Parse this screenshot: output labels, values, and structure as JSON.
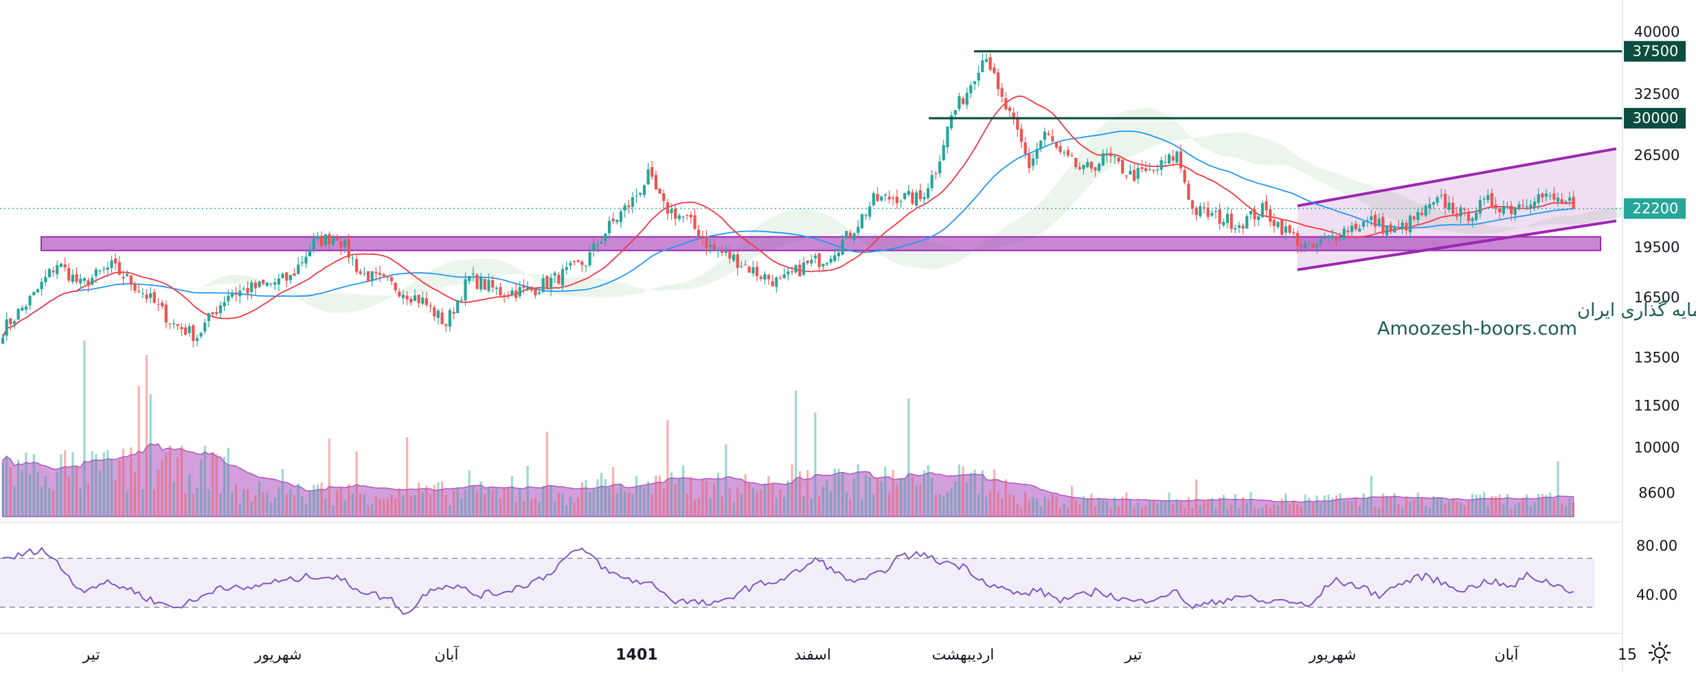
{
  "chart_data": {
    "type": "candlestick",
    "y_axis": {
      "scale": "log",
      "ticks": [
        "40000",
        "32500",
        "26500",
        "19500",
        "16500",
        "13500",
        "11500",
        "10000",
        "8600"
      ],
      "range": [
        7800,
        44500
      ]
    },
    "x_axis": {
      "ticks": [
        {
          "label": "تیر",
          "bold": false
        },
        {
          "label": "شهریور",
          "bold": false
        },
        {
          "label": "آبان",
          "bold": false
        },
        {
          "label": "1401",
          "bold": true
        },
        {
          "label": "اسفند",
          "bold": false
        },
        {
          "label": "اردیبهشت",
          "bold": false
        },
        {
          "label": "تیر",
          "bold": false
        },
        {
          "label": "شهریور",
          "bold": false
        },
        {
          "label": "آبان",
          "bold": false
        },
        {
          "label": "15",
          "bold": false
        }
      ]
    },
    "price_keyframes": [
      [
        0,
        14800
      ],
      [
        8,
        16600
      ],
      [
        14,
        18500
      ],
      [
        20,
        17200
      ],
      [
        28,
        18300
      ],
      [
        36,
        16800
      ],
      [
        44,
        15100
      ],
      [
        50,
        14500
      ],
      [
        58,
        16700
      ],
      [
        66,
        17100
      ],
      [
        74,
        17600
      ],
      [
        80,
        19800
      ],
      [
        86,
        20300
      ],
      [
        92,
        17900
      ],
      [
        100,
        17200
      ],
      [
        108,
        16300
      ],
      [
        114,
        15100
      ],
      [
        120,
        17600
      ],
      [
        128,
        16800
      ],
      [
        136,
        16900
      ],
      [
        144,
        17800
      ],
      [
        150,
        18600
      ],
      [
        156,
        20900
      ],
      [
        162,
        22800
      ],
      [
        166,
        24700
      ],
      [
        170,
        22300
      ],
      [
        176,
        21400
      ],
      [
        182,
        19500
      ],
      [
        188,
        18800
      ],
      [
        194,
        17900
      ],
      [
        200,
        17300
      ],
      [
        206,
        18300
      ],
      [
        212,
        18900
      ],
      [
        218,
        20400
      ],
      [
        224,
        22800
      ],
      [
        230,
        23100
      ],
      [
        236,
        22900
      ],
      [
        240,
        25300
      ],
      [
        244,
        30200
      ],
      [
        248,
        32800
      ],
      [
        251,
        35800
      ],
      [
        253,
        37300
      ],
      [
        256,
        32600
      ],
      [
        260,
        29400
      ],
      [
        264,
        25600
      ],
      [
        268,
        28600
      ],
      [
        272,
        26500
      ],
      [
        278,
        25100
      ],
      [
        284,
        26400
      ],
      [
        290,
        24800
      ],
      [
        296,
        25100
      ],
      [
        302,
        26600
      ],
      [
        306,
        22100
      ],
      [
        312,
        21600
      ],
      [
        318,
        21100
      ],
      [
        324,
        22100
      ],
      [
        330,
        20600
      ],
      [
        336,
        19300
      ],
      [
        340,
        19900
      ],
      [
        346,
        20800
      ],
      [
        352,
        21300
      ],
      [
        358,
        20500
      ],
      [
        364,
        21600
      ],
      [
        370,
        22800
      ],
      [
        376,
        21600
      ],
      [
        382,
        22700
      ],
      [
        388,
        22200
      ],
      [
        394,
        23200
      ],
      [
        400,
        22800
      ],
      [
        404,
        22400
      ]
    ],
    "series": [
      {
        "name": "",
        "kind": "candles",
        "color_up": "#26a69a",
        "color_down": "#ef5350"
      },
      {
        "name": "",
        "kind": "moving_average_fast",
        "color": "#f23645"
      },
      {
        "name": "",
        "kind": "moving_average_slow",
        "color": "#2196f3"
      },
      {
        "name": "",
        "kind": "cloud",
        "color": "#e4f2e6"
      },
      {
        "name": "",
        "kind": "volume",
        "color": "#9c27b0"
      },
      {
        "name": "",
        "kind": "rsi",
        "color": "#7e57c2",
        "upper": 70,
        "lower": 30
      }
    ],
    "rsi": {
      "ticks": [
        "80.00",
        "40.00"
      ],
      "keyframes": [
        [
          0,
          68
        ],
        [
          4,
          72
        ],
        [
          10,
          78
        ],
        [
          14,
          66
        ],
        [
          20,
          44
        ],
        [
          26,
          50
        ],
        [
          32,
          46
        ],
        [
          38,
          36
        ],
        [
          44,
          30
        ],
        [
          50,
          36
        ],
        [
          56,
          48
        ],
        [
          62,
          44
        ],
        [
          68,
          50
        ],
        [
          74,
          52
        ],
        [
          80,
          56
        ],
        [
          86,
          54
        ],
        [
          92,
          44
        ],
        [
          100,
          36
        ],
        [
          104,
          24
        ],
        [
          110,
          46
        ],
        [
          116,
          48
        ],
        [
          122,
          40
        ],
        [
          128,
          42
        ],
        [
          134,
          48
        ],
        [
          140,
          56
        ],
        [
          146,
          74
        ],
        [
          150,
          76
        ],
        [
          156,
          58
        ],
        [
          162,
          52
        ],
        [
          168,
          48
        ],
        [
          172,
          36
        ],
        [
          178,
          34
        ],
        [
          184,
          32
        ],
        [
          190,
          44
        ],
        [
          196,
          50
        ],
        [
          200,
          52
        ],
        [
          206,
          62
        ],
        [
          210,
          70
        ],
        [
          214,
          58
        ],
        [
          220,
          50
        ],
        [
          226,
          58
        ],
        [
          230,
          70
        ],
        [
          236,
          74
        ],
        [
          240,
          68
        ],
        [
          244,
          66
        ],
        [
          248,
          62
        ],
        [
          252,
          52
        ],
        [
          258,
          44
        ],
        [
          262,
          40
        ],
        [
          266,
          44
        ],
        [
          272,
          36
        ],
        [
          276,
          38
        ],
        [
          282,
          44
        ],
        [
          286,
          38
        ],
        [
          292,
          34
        ],
        [
          298,
          40
        ],
        [
          302,
          42
        ],
        [
          306,
          30
        ],
        [
          312,
          34
        ],
        [
          318,
          40
        ],
        [
          324,
          34
        ],
        [
          330,
          36
        ],
        [
          336,
          30
        ],
        [
          342,
          52
        ],
        [
          348,
          48
        ],
        [
          354,
          40
        ],
        [
          360,
          50
        ],
        [
          366,
          56
        ],
        [
          370,
          50
        ],
        [
          376,
          44
        ],
        [
          382,
          52
        ],
        [
          388,
          46
        ],
        [
          392,
          56
        ],
        [
          398,
          50
        ],
        [
          404,
          43
        ]
      ]
    },
    "horizontal_levels": [
      {
        "value": 37500,
        "label": "37500",
        "color": "#0b4d3f"
      },
      {
        "value": 30000,
        "label": "30000",
        "color": "#0b4d3f"
      }
    ],
    "current_price": {
      "value": 22200,
      "label": "22200",
      "color": "#26a69a"
    },
    "support_zone": {
      "low": 19300,
      "high": 20200,
      "color": "#9c27b0"
    },
    "ascending_channel": {
      "start_index": 333,
      "end_index": 415,
      "upper": [
        22400,
        27100
      ],
      "lower": [
        18100,
        21300
      ],
      "color": "#9c27b0"
    }
  },
  "watermark": {
    "line1": "انجمن خبرگان سرمایه گذاری ایران",
    "line2": "Amoozesh-boors.com"
  },
  "toolbar": {
    "settings_icon": "gear-icon"
  }
}
